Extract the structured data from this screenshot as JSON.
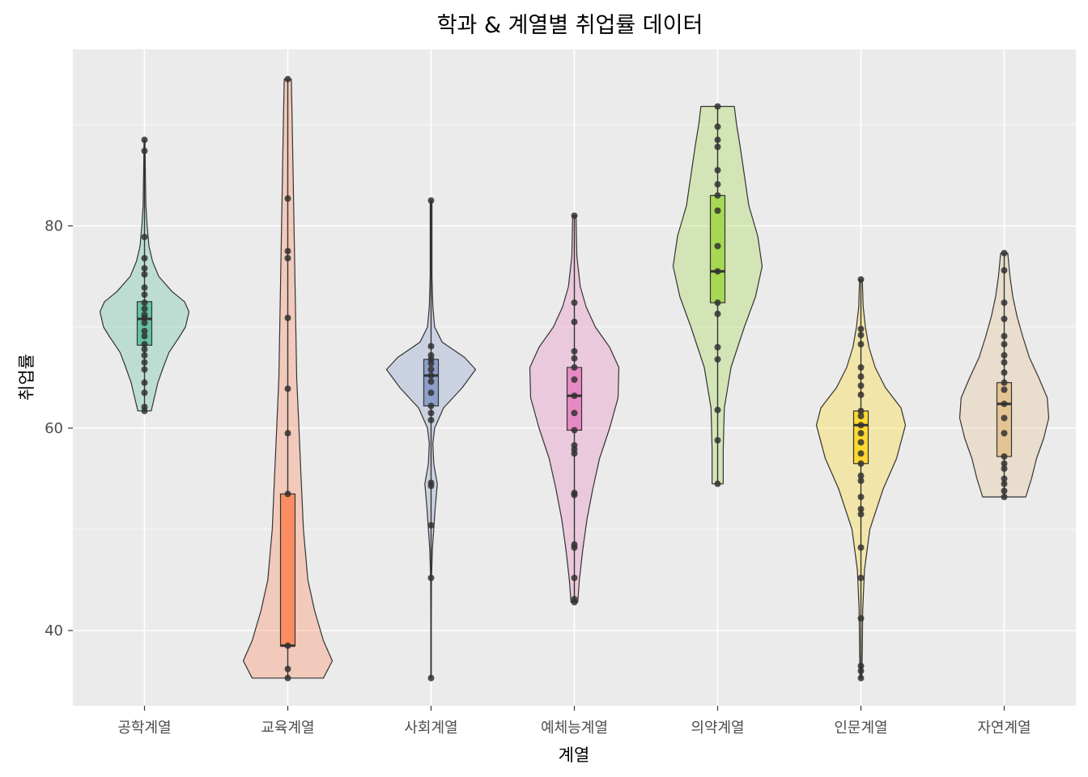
{
  "chart_data": {
    "type": "violin",
    "title": "학과 & 계열별 취업률 데이터",
    "xlabel": "계열",
    "ylabel": "취업률",
    "ylim": [
      33,
      98
    ],
    "yticks": [
      40,
      60,
      80
    ],
    "grid": true,
    "legend": "none",
    "categories": [
      "공학계열",
      "교육계열",
      "사회계열",
      "예체능계열",
      "의약계열",
      "인문계열",
      "자연계열"
    ],
    "series": [
      {
        "category": "공학계열",
        "color": "#66c2a5",
        "min": 61.7,
        "q1": 68.2,
        "median": 70.8,
        "q3": 72.5,
        "max": 88.5,
        "points": [
          61.7,
          62.1,
          63.5,
          64.5,
          65.8,
          66.5,
          67.2,
          67.8,
          68.3,
          69.1,
          69.6,
          70.4,
          70.9,
          71.2,
          71.8,
          72.4,
          73.2,
          73.9,
          75.2,
          75.8,
          76.8,
          78.9,
          87.4,
          88.5
        ],
        "density": [
          [
            61.7,
            0.15
          ],
          [
            63,
            0.22
          ],
          [
            64.5,
            0.3
          ],
          [
            66,
            0.42
          ],
          [
            67.5,
            0.55
          ],
          [
            69,
            0.78
          ],
          [
            70,
            0.92
          ],
          [
            71.5,
            1.0
          ],
          [
            72.5,
            0.9
          ],
          [
            73.5,
            0.62
          ],
          [
            75,
            0.32
          ],
          [
            76.5,
            0.18
          ],
          [
            78,
            0.1
          ],
          [
            80,
            0.06
          ],
          [
            82,
            0.03
          ],
          [
            85,
            0.02
          ],
          [
            88.5,
            0.01
          ]
        ]
      },
      {
        "category": "교육계열",
        "color": "#fc8d62",
        "min": 35.3,
        "q1": 38.5,
        "median": 38.5,
        "q3": 53.5,
        "max": 94.5,
        "points": [
          35.3,
          36.2,
          38.5,
          53.5,
          59.5,
          63.9,
          70.9,
          76.8,
          77.5,
          82.7,
          94.5
        ],
        "density": [
          [
            35.3,
            0.08
          ],
          [
            37,
            0.1
          ],
          [
            39,
            0.08
          ],
          [
            42,
            0.06
          ],
          [
            45,
            0.045
          ],
          [
            50,
            0.035
          ],
          [
            55,
            0.03
          ],
          [
            60,
            0.025
          ],
          [
            65,
            0.02
          ],
          [
            70,
            0.018
          ],
          [
            75,
            0.016
          ],
          [
            80,
            0.014
          ],
          [
            85,
            0.012
          ],
          [
            90,
            0.01
          ],
          [
            94.5,
            0.008
          ]
        ]
      },
      {
        "category": "사회계열",
        "color": "#8da0cb",
        "min": 35.3,
        "q1": 62.2,
        "median": 65.2,
        "q3": 66.8,
        "max": 82.5,
        "points": [
          35.3,
          45.2,
          50.4,
          54.3,
          54.6,
          60.8,
          61.5,
          62.2,
          63.5,
          64.6,
          65.2,
          65.8,
          66.4,
          66.8,
          67.2,
          68.1,
          82.5
        ],
        "density": [
          [
            35.3,
            0.005
          ],
          [
            40,
            0.006
          ],
          [
            45,
            0.01
          ],
          [
            48,
            0.03
          ],
          [
            50,
            0.06
          ],
          [
            52,
            0.09
          ],
          [
            54.5,
            0.14
          ],
          [
            56.5,
            0.06
          ],
          [
            58.5,
            0.04
          ],
          [
            60,
            0.08
          ],
          [
            62,
            0.28
          ],
          [
            64,
            0.7
          ],
          [
            65.8,
            1.0
          ],
          [
            67,
            0.75
          ],
          [
            68.5,
            0.25
          ],
          [
            70,
            0.08
          ],
          [
            72,
            0.04
          ],
          [
            75,
            0.02
          ],
          [
            80,
            0.02
          ],
          [
            82.5,
            0.02
          ]
        ]
      },
      {
        "category": "예체능계열",
        "color": "#e78ac3",
        "min": 42.8,
        "q1": 59.8,
        "median": 63.2,
        "q3": 66.0,
        "max": 81.0,
        "points": [
          42.8,
          43.1,
          45.2,
          48.2,
          48.5,
          53.4,
          53.6,
          57.5,
          57.9,
          58.3,
          59.8,
          61.5,
          63.2,
          64.8,
          66.0,
          66.9,
          67.6,
          70.5,
          72.4,
          81.0
        ],
        "density": [
          [
            42.8,
            0.04
          ],
          [
            45,
            0.06
          ],
          [
            48,
            0.1
          ],
          [
            51,
            0.15
          ],
          [
            54,
            0.22
          ],
          [
            57,
            0.3
          ],
          [
            60,
            0.42
          ],
          [
            63,
            0.52
          ],
          [
            66,
            0.53
          ],
          [
            68,
            0.42
          ],
          [
            70,
            0.25
          ],
          [
            72,
            0.14
          ],
          [
            74,
            0.07
          ],
          [
            77,
            0.03
          ],
          [
            81,
            0.02
          ]
        ]
      },
      {
        "category": "의약계열",
        "color": "#a6d854",
        "min": 54.5,
        "q1": 72.4,
        "median": 75.5,
        "q3": 83.0,
        "max": 91.8,
        "points": [
          54.5,
          58.8,
          61.8,
          66.8,
          68.0,
          71.3,
          72.4,
          75.5,
          78.0,
          81.5,
          83.0,
          84.1,
          85.5,
          87.8,
          88.5,
          89.8,
          91.8
        ],
        "density": [
          [
            54.5,
            0.05
          ],
          [
            58,
            0.05
          ],
          [
            62,
            0.06
          ],
          [
            66,
            0.12
          ],
          [
            70,
            0.24
          ],
          [
            73,
            0.34
          ],
          [
            76,
            0.4
          ],
          [
            79,
            0.36
          ],
          [
            82,
            0.28
          ],
          [
            85,
            0.24
          ],
          [
            88,
            0.2
          ],
          [
            90,
            0.17
          ],
          [
            91.8,
            0.15
          ]
        ]
      },
      {
        "category": "인문계열",
        "color": "#ffd92f",
        "min": 35.3,
        "q1": 56.5,
        "median": 60.3,
        "q3": 61.7,
        "max": 74.7,
        "points": [
          35.3,
          36.0,
          36.5,
          41.2,
          45.2,
          48.2,
          51.5,
          52.0,
          53.2,
          54.8,
          55.3,
          56.5,
          57.5,
          58.6,
          59.5,
          60.3,
          61.2,
          61.7,
          63.3,
          64.2,
          65.1,
          66.0,
          68.3,
          69.2,
          69.8,
          74.7
        ],
        "density": [
          [
            35.3,
            0.02
          ],
          [
            38,
            0.03
          ],
          [
            42,
            0.04
          ],
          [
            46,
            0.08
          ],
          [
            50,
            0.2
          ],
          [
            54,
            0.5
          ],
          [
            57,
            0.8
          ],
          [
            60.3,
            1.0
          ],
          [
            62,
            0.9
          ],
          [
            64,
            0.55
          ],
          [
            66,
            0.32
          ],
          [
            68,
            0.18
          ],
          [
            70,
            0.1
          ],
          [
            72,
            0.05
          ],
          [
            74.7,
            0.03
          ]
        ]
      },
      {
        "category": "자연계열",
        "color": "#e5c494",
        "min": 53.2,
        "q1": 57.2,
        "median": 62.4,
        "q3": 64.5,
        "max": 77.3,
        "points": [
          53.2,
          53.8,
          54.5,
          55.0,
          56.0,
          56.5,
          57.2,
          59.5,
          61.0,
          62.4,
          63.8,
          64.5,
          65.5,
          66.5,
          67.2,
          68.3,
          69.1,
          70.8,
          72.4,
          75.6,
          77.3
        ],
        "density": [
          [
            53.2,
            0.3
          ],
          [
            55,
            0.38
          ],
          [
            57,
            0.45
          ],
          [
            59,
            0.55
          ],
          [
            61,
            0.62
          ],
          [
            63,
            0.6
          ],
          [
            65,
            0.48
          ],
          [
            67,
            0.35
          ],
          [
            69,
            0.26
          ],
          [
            71,
            0.18
          ],
          [
            73,
            0.12
          ],
          [
            75,
            0.08
          ],
          [
            77.3,
            0.05
          ]
        ]
      }
    ]
  }
}
